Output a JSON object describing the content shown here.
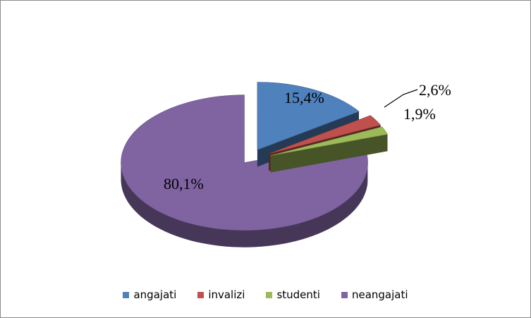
{
  "chart_data": {
    "type": "pie",
    "title": "",
    "categories": [
      "angajati",
      "invalizi",
      "studenti",
      "neangajati"
    ],
    "values": [
      15.4,
      2.6,
      1.9,
      80.1
    ],
    "labels": [
      "15,4%",
      "2,6%",
      "1,9%",
      "80,1%"
    ],
    "colors": [
      "#4f81bd",
      "#c0504d",
      "#9bbb59",
      "#8064a2"
    ],
    "exploded": true,
    "style": "3d",
    "legend_position": "bottom"
  }
}
